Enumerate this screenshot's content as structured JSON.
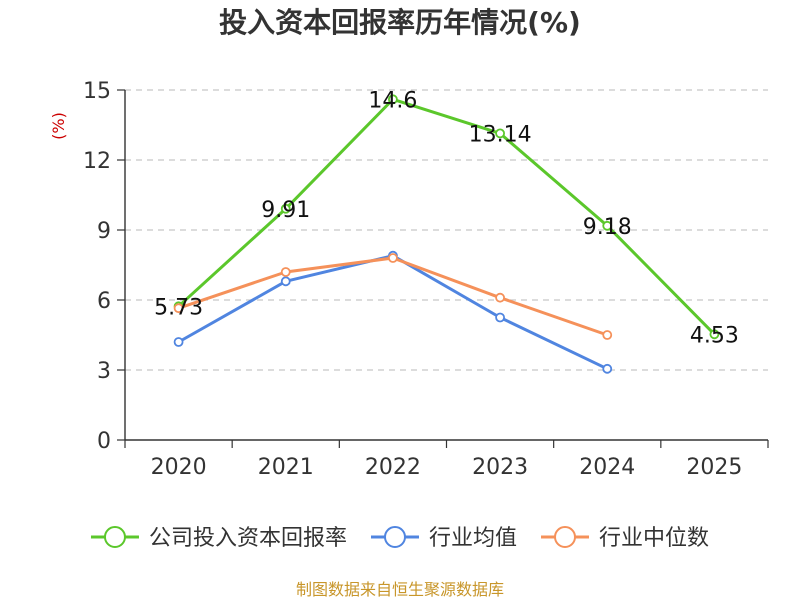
{
  "chart_data": {
    "type": "line",
    "title": "投入资本回报率历年情况(%)",
    "ylabel": "(%)",
    "xlabel": "",
    "categories": [
      "2020",
      "2021",
      "2022",
      "2023",
      "2024",
      "2025"
    ],
    "ylim": [
      0,
      15
    ],
    "yticks": [
      0,
      3,
      6,
      9,
      12,
      15
    ],
    "grid": true,
    "legend_position": "bottom",
    "series": [
      {
        "name": "公司投入资本回报率",
        "color": "#5bc72b",
        "values": [
          5.73,
          9.91,
          14.6,
          13.14,
          9.18,
          4.53
        ],
        "labels": [
          "5.73",
          "9.91",
          "14.6",
          "13.14",
          "9.18",
          "4.53"
        ]
      },
      {
        "name": "行业均值",
        "color": "#5085e0",
        "values": [
          4.2,
          6.8,
          7.9,
          5.25,
          3.05,
          null
        ]
      },
      {
        "name": "行业中位数",
        "color": "#f5915a",
        "values": [
          5.65,
          7.2,
          7.8,
          6.1,
          4.5,
          null
        ]
      }
    ],
    "source": "制图数据来自恒生聚源数据库"
  }
}
